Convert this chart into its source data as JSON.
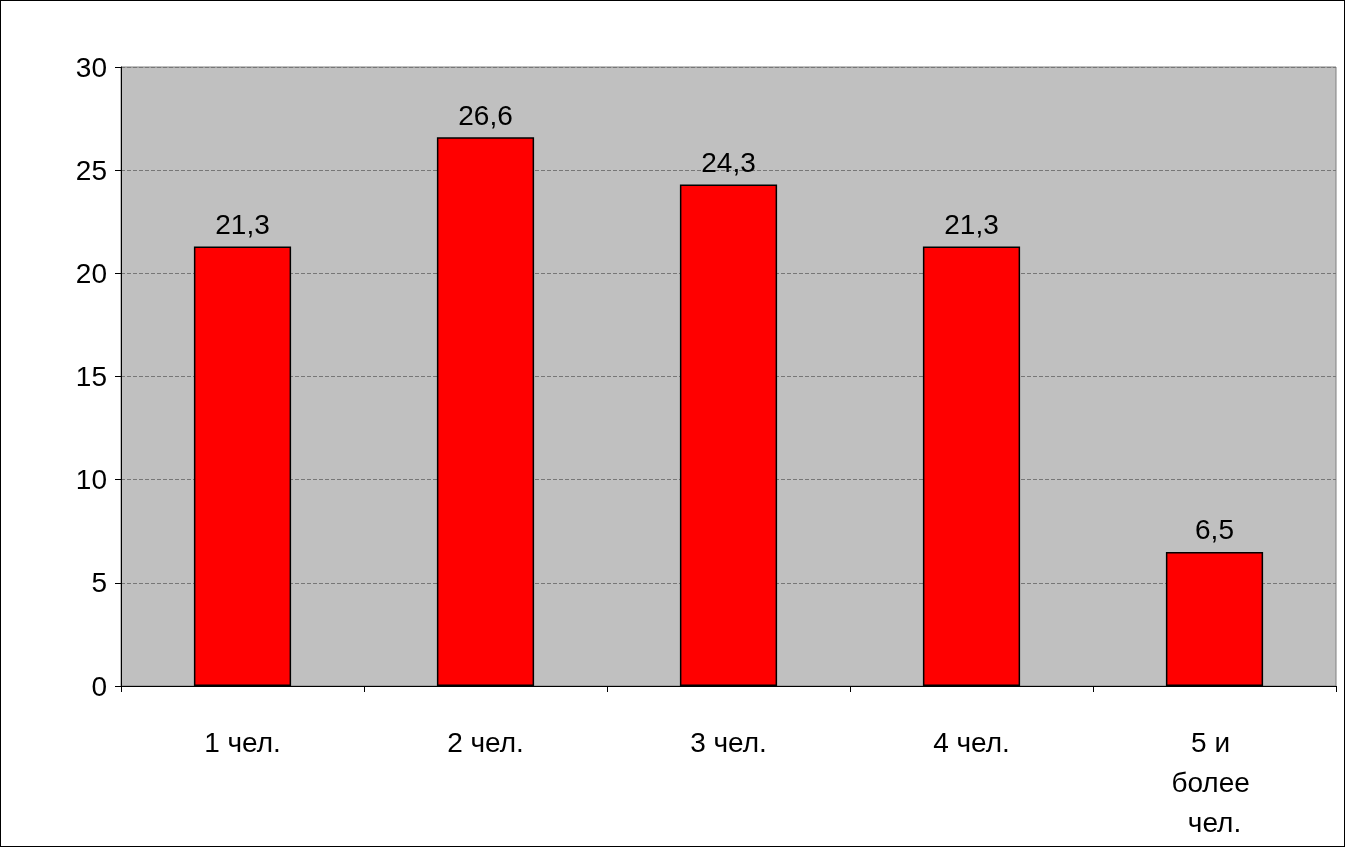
{
  "chart_data": {
    "type": "bar",
    "categories": [
      "1 чел.",
      "2 чел.",
      "3 чел.",
      "4 чел.",
      "5 и более чел."
    ],
    "values": [
      21.3,
      26.6,
      24.3,
      21.3,
      6.5
    ],
    "color": "#ff0000",
    "ylim": [
      0,
      30
    ],
    "yticks": [
      0,
      5,
      10,
      15,
      20,
      25,
      30
    ],
    "value_labels": [
      "21,3",
      "26,6",
      "24,3",
      "21,3",
      "6,5"
    ],
    "grid": "y"
  }
}
